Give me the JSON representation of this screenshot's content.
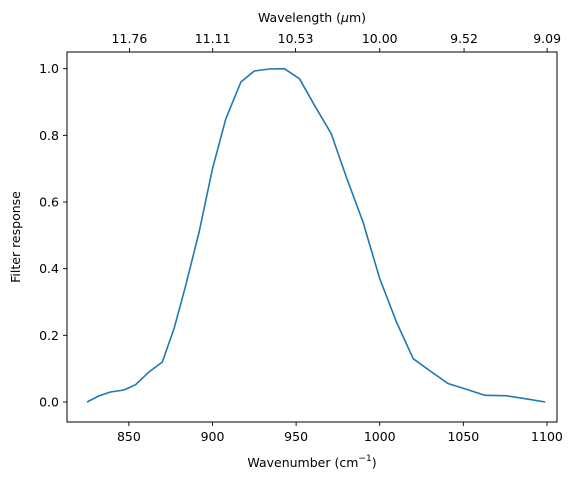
{
  "chart_data": {
    "type": "line",
    "xlabel": "Wavenumber (cm",
    "xlabel_sup": "−1",
    "xlabel_end": ")",
    "ylabel": "Filter response",
    "top_xlabel": "Wavelength (",
    "top_xlabel_mu": "μ",
    "top_xlabel_end": "m)",
    "xlim": [
      813,
      1106
    ],
    "ylim": [
      -0.06,
      1.05
    ],
    "xticks": [
      850,
      900,
      950,
      1000,
      1050,
      1100
    ],
    "yticks": [
      0.0,
      0.2,
      0.4,
      0.6,
      0.8,
      1.0
    ],
    "ytick_labels": [
      "0.0",
      "0.2",
      "0.4",
      "0.6",
      "0.8",
      "1.0"
    ],
    "top_ticks": [
      {
        "at": 850.34,
        "label": "11.76"
      },
      {
        "at": 900.09,
        "label": "11.11"
      },
      {
        "at": 949.67,
        "label": "10.53"
      },
      {
        "at": 1000.0,
        "label": "10.00"
      },
      {
        "at": 1050.42,
        "label": "9.52"
      },
      {
        "at": 1100.11,
        "label": "9.09"
      }
    ],
    "grid": false,
    "color": "#1f77b4",
    "series": [
      {
        "x": [
          825,
          832,
          839,
          847,
          854,
          862,
          870,
          877,
          884,
          892,
          900,
          908,
          917,
          925,
          934,
          943,
          952,
          961,
          971,
          980,
          990,
          1000,
          1010,
          1020,
          1031,
          1041,
          1052,
          1063,
          1075,
          1087,
          1099
        ],
        "y": [
          0.0,
          0.018,
          0.03,
          0.036,
          0.052,
          0.09,
          0.12,
          0.22,
          0.35,
          0.51,
          0.7,
          0.85,
          0.96,
          0.993,
          0.999,
          1.0,
          0.97,
          0.89,
          0.805,
          0.675,
          0.54,
          0.37,
          0.24,
          0.13,
          0.09,
          0.055,
          0.038,
          0.02,
          0.019,
          0.01,
          0.0
        ]
      }
    ]
  }
}
